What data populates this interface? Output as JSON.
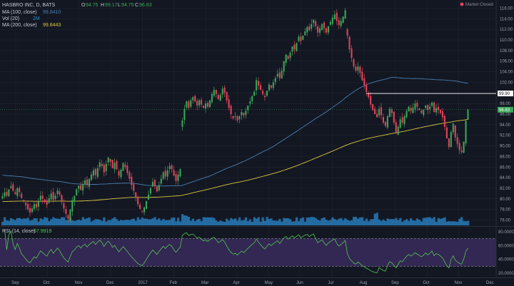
{
  "header": {
    "symbol_text": "HASBRO INC, D, BATS",
    "ohlc_labels": [
      "O",
      "H",
      "L",
      "C"
    ],
    "ohlc_values": [
      "94.75",
      "99.17",
      "94.75",
      "96.83"
    ],
    "indicators": [
      {
        "label": "MA (100, close)",
        "value": "99.8410"
      },
      {
        "label": "Vol (20)",
        "value": "2M"
      },
      {
        "label": "MA (200, close)",
        "value": "99.8443"
      }
    ],
    "rsi_label": "RSI (14, close)",
    "rsi_value": "57.9919",
    "market_status": "Market Closed"
  },
  "colors": {
    "background": "#131722",
    "grid": "#1f2430",
    "up": "#3aa757",
    "down": "#e0445a",
    "ma100": "#4a7fb0",
    "ma200": "#d8c840",
    "volume": "#2a86c8",
    "rsi": "#53c653",
    "rsi_band": "#3a2a5c",
    "hline": "#ffffff",
    "green_label": "#3aa757"
  },
  "chart_data": {
    "type": "candlestick",
    "price_axis_ticks": [
      "116.00",
      "114.00",
      "112.00",
      "110.00",
      "108.00",
      "106.00",
      "104.00",
      "102.00",
      "100.00",
      "98.00",
      "96.00",
      "94.00",
      "92.00",
      "90.00",
      "88.00",
      "86.00",
      "84.00",
      "82.00",
      "80.00",
      "78.00",
      "76.00"
    ],
    "price_range": [
      75,
      117
    ],
    "last_price_label": "96.83",
    "horizontal_line_label": "99.90",
    "horizontal_line_value": 99.9,
    "time_axis_labels": [
      "Sep",
      "Oct",
      "Nov",
      "Dec",
      "2017",
      "Feb",
      "Mar",
      "Apr",
      "May",
      "Jun",
      "Jul",
      "Aug",
      "Sep",
      "Oct",
      "Nov",
      "Dec"
    ],
    "rsi_axis_ticks": [
      "80.0000",
      "60.0000",
      "40.0000",
      "20.0000"
    ],
    "rsi_range": [
      15,
      85
    ],
    "rsi_bands": [
      70,
      30
    ],
    "closes": [
      80.5,
      81.2,
      80.6,
      81.8,
      82.4,
      81.5,
      80.9,
      82.0,
      81.3,
      80.2,
      79.6,
      78.8,
      78.0,
      77.4,
      78.2,
      79.0,
      78.4,
      79.5,
      80.6,
      80.0,
      79.4,
      78.9,
      80.1,
      81.0,
      79.8,
      80.6,
      81.6,
      80.8,
      79.4,
      78.2,
      77.2,
      76.3,
      78.0,
      79.8,
      80.5,
      81.8,
      82.5,
      81.7,
      82.8,
      83.5,
      82.6,
      83.8,
      84.6,
      85.4,
      84.5,
      85.8,
      86.9,
      86.2,
      85.0,
      86.6,
      87.8,
      87.0,
      85.8,
      86.8,
      85.6,
      84.4,
      85.5,
      86.8,
      86.0,
      84.9,
      83.8,
      82.6,
      81.5,
      80.2,
      79.0,
      78.1,
      77.6,
      78.4,
      79.6,
      80.8,
      82.0,
      83.2,
      82.4,
      81.4,
      82.6,
      83.8,
      85.0,
      84.2,
      85.4,
      86.2,
      85.6,
      84.4,
      83.4,
      84.6,
      85.6,
      94.8,
      97.0,
      98.4,
      97.2,
      98.6,
      99.2,
      98.4,
      97.6,
      98.6,
      97.8,
      97.2,
      98.0,
      97.4,
      98.6,
      99.8,
      100.6,
      99.8,
      98.8,
      99.6,
      100.8,
      100.0,
      98.6,
      97.2,
      96.0,
      95.2,
      95.6,
      94.8,
      95.6,
      96.4,
      95.8,
      96.6,
      97.6,
      98.4,
      99.4,
      100.2,
      102.4,
      101.4,
      100.6,
      99.8,
      99.2,
      100.4,
      101.6,
      101.0,
      102.0,
      102.8,
      103.6,
      102.8,
      104.2,
      106.0,
      107.2,
      106.4,
      107.6,
      108.8,
      108.2,
      109.4,
      110.6,
      109.8,
      110.8,
      111.6,
      112.4,
      111.8,
      113.0,
      113.8,
      112.6,
      111.4,
      112.2,
      113.0,
      112.2,
      111.4,
      112.6,
      113.4,
      114.2,
      114.8,
      113.6,
      112.8,
      113.6,
      114.4,
      115.6,
      110.8,
      108.2,
      106.6,
      105.0,
      104.2,
      105.0,
      103.8,
      102.4,
      101.4,
      100.2,
      99.2,
      97.8,
      96.8,
      96.0,
      95.4,
      97.0,
      95.8,
      94.4,
      93.8,
      95.6,
      97.0,
      96.2,
      94.4,
      92.4,
      93.6,
      95.0,
      94.4,
      95.6,
      96.6,
      97.4,
      96.6,
      97.2,
      98.0,
      97.4,
      96.8,
      96.2,
      96.8,
      97.6,
      96.8,
      97.4,
      98.2,
      96.4,
      97.2,
      96.8,
      96.2,
      95.4,
      93.6,
      91.4,
      89.8,
      92.6,
      94.2,
      91.6,
      90.4,
      89.2,
      88.8,
      90.8,
      94.8,
      96.83
    ]
  }
}
